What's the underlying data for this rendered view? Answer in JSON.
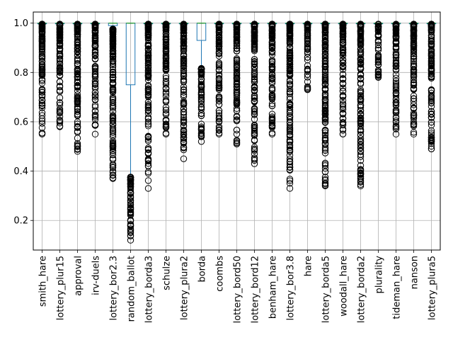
{
  "chart_data": {
    "type": "box",
    "title": "",
    "xlabel": "",
    "ylabel": "",
    "ylim": [
      0.08,
      1.045
    ],
    "y_ticks": [
      0.2,
      0.4,
      0.6,
      0.8,
      1.0
    ],
    "y_tick_labels": [
      "0.2",
      "0.4",
      "0.6",
      "0.8",
      "1.0"
    ],
    "grid": true,
    "colors": {
      "box": "#1f77b4",
      "median": "#2ca02c",
      "flier": "#000000",
      "grid": "#b0b0b0"
    },
    "series": [
      {
        "name": "smith_hare",
        "q1": 1.0,
        "median": 1.0,
        "q3": 1.0,
        "whisker_low": 1.0,
        "whisker_high": 1.0,
        "flier_min": 0.55
      },
      {
        "name": "lottery_plur15",
        "q1": 1.0,
        "median": 1.0,
        "q3": 1.0,
        "whisker_low": 1.0,
        "whisker_high": 1.0,
        "flier_min": 0.58
      },
      {
        "name": "approval",
        "q1": 1.0,
        "median": 1.0,
        "q3": 1.0,
        "whisker_low": 1.0,
        "whisker_high": 1.0,
        "flier_min": 0.48
      },
      {
        "name": "irv-duels",
        "q1": 1.0,
        "median": 1.0,
        "q3": 1.0,
        "whisker_low": 1.0,
        "whisker_high": 1.0,
        "flier_min": 0.55
      },
      {
        "name": "lottery_bor2.3",
        "q1": 0.99,
        "median": 1.0,
        "q3": 1.0,
        "whisker_low": 0.98,
        "whisker_high": 1.0,
        "flier_min": 0.37
      },
      {
        "name": "random_ballot",
        "q1": 0.75,
        "median": 1.0,
        "q3": 1.0,
        "whisker_low": 0.38,
        "whisker_high": 1.0,
        "flier_min": 0.12
      },
      {
        "name": "lottery_borda3",
        "q1": 1.0,
        "median": 1.0,
        "q3": 1.0,
        "whisker_low": 1.0,
        "whisker_high": 1.0,
        "flier_min": 0.33
      },
      {
        "name": "schulze",
        "q1": 1.0,
        "median": 1.0,
        "q3": 1.0,
        "whisker_low": 1.0,
        "whisker_high": 1.0,
        "flier_min": 0.55
      },
      {
        "name": "lottery_plura2",
        "q1": 1.0,
        "median": 1.0,
        "q3": 1.0,
        "whisker_low": 1.0,
        "whisker_high": 1.0,
        "flier_min": 0.45
      },
      {
        "name": "borda",
        "q1": 0.93,
        "median": 1.0,
        "q3": 1.0,
        "whisker_low": 0.82,
        "whisker_high": 1.0,
        "flier_min": 0.52
      },
      {
        "name": "coombs",
        "q1": 1.0,
        "median": 1.0,
        "q3": 1.0,
        "whisker_low": 1.0,
        "whisker_high": 1.0,
        "flier_min": 0.55
      },
      {
        "name": "lottery_bord50",
        "q1": 1.0,
        "median": 1.0,
        "q3": 1.0,
        "whisker_low": 1.0,
        "whisker_high": 1.0,
        "flier_min": 0.51
      },
      {
        "name": "lottery_bord12",
        "q1": 1.0,
        "median": 1.0,
        "q3": 1.0,
        "whisker_low": 1.0,
        "whisker_high": 1.0,
        "flier_min": 0.43
      },
      {
        "name": "benham_hare",
        "q1": 1.0,
        "median": 1.0,
        "q3": 1.0,
        "whisker_low": 1.0,
        "whisker_high": 1.0,
        "flier_min": 0.55
      },
      {
        "name": "lottery_bor3.8",
        "q1": 1.0,
        "median": 1.0,
        "q3": 1.0,
        "whisker_low": 1.0,
        "whisker_high": 1.0,
        "flier_min": 0.33
      },
      {
        "name": "hare",
        "q1": 1.0,
        "median": 1.0,
        "q3": 1.0,
        "whisker_low": 1.0,
        "whisker_high": 1.0,
        "flier_min": 0.73
      },
      {
        "name": "lottery_borda5",
        "q1": 1.0,
        "median": 1.0,
        "q3": 1.0,
        "whisker_low": 1.0,
        "whisker_high": 1.0,
        "flier_min": 0.34
      },
      {
        "name": "woodall_hare",
        "q1": 1.0,
        "median": 1.0,
        "q3": 1.0,
        "whisker_low": 1.0,
        "whisker_high": 1.0,
        "flier_min": 0.55
      },
      {
        "name": "lottery_borda2",
        "q1": 1.0,
        "median": 1.0,
        "q3": 1.0,
        "whisker_low": 1.0,
        "whisker_high": 1.0,
        "flier_min": 0.34
      },
      {
        "name": "plurality",
        "q1": 1.0,
        "median": 1.0,
        "q3": 1.0,
        "whisker_low": 1.0,
        "whisker_high": 1.0,
        "flier_min": 0.78
      },
      {
        "name": "tideman_hare",
        "q1": 1.0,
        "median": 1.0,
        "q3": 1.0,
        "whisker_low": 1.0,
        "whisker_high": 1.0,
        "flier_min": 0.55
      },
      {
        "name": "nanson",
        "q1": 1.0,
        "median": 1.0,
        "q3": 1.0,
        "whisker_low": 1.0,
        "whisker_high": 1.0,
        "flier_min": 0.55
      },
      {
        "name": "lottery_plura5",
        "q1": 1.0,
        "median": 1.0,
        "q3": 1.0,
        "whisker_low": 1.0,
        "whisker_high": 1.0,
        "flier_min": 0.49
      }
    ]
  }
}
